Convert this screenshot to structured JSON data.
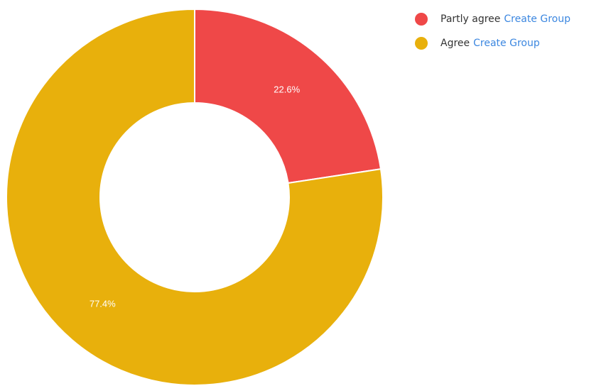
{
  "chart_data": {
    "type": "pie",
    "title": "",
    "donut": true,
    "legend_position": "top-right",
    "slices": [
      {
        "label": "Partly agree",
        "value": 22.6,
        "display": "22.6%",
        "color": "#ef4848",
        "action": "Create Group"
      },
      {
        "label": "Agree",
        "value": 77.4,
        "display": "77.4%",
        "color": "#e8b00c",
        "action": "Create Group"
      }
    ]
  },
  "legend": {
    "items": [
      {
        "label": "Partly agree",
        "link": "Create Group",
        "color": "#ef4848"
      },
      {
        "label": "Agree",
        "link": "Create Group",
        "color": "#e8b00c"
      }
    ]
  }
}
